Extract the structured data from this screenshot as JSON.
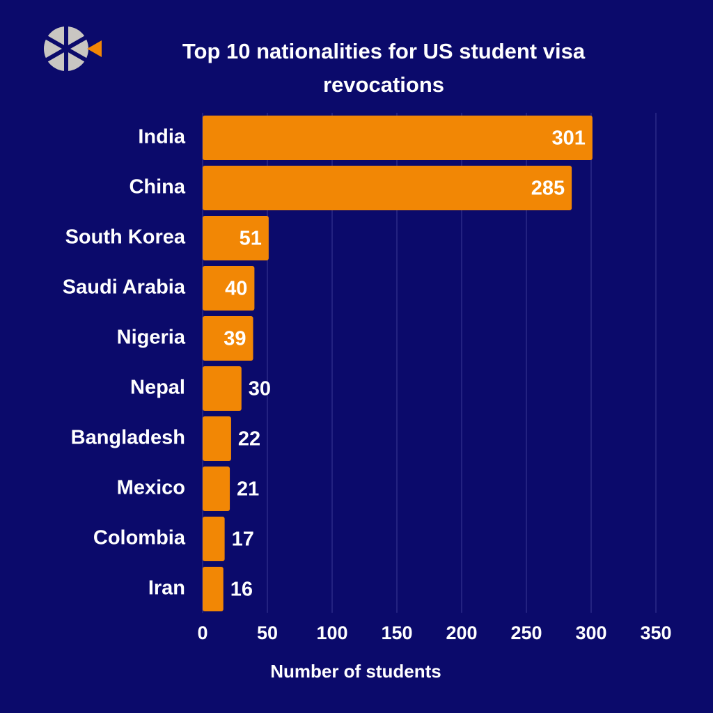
{
  "chart_data": {
    "type": "bar",
    "orientation": "horizontal",
    "title": "Top 10 nationalities for US student visa revocations",
    "x_label": "Number of students",
    "categories": [
      "India",
      "China",
      "South Korea",
      "Saudi Arabia",
      "Nigeria",
      "Nepal",
      "Bangladesh",
      "Mexico",
      "Colombia",
      "Iran"
    ],
    "values": [
      301,
      285,
      51,
      40,
      39,
      30,
      22,
      21,
      17,
      16
    ],
    "color": "#f28705",
    "xlim": [
      0,
      350
    ],
    "xticks": [
      0,
      50,
      100,
      150,
      200,
      250,
      300,
      350
    ],
    "grid": true
  }
}
